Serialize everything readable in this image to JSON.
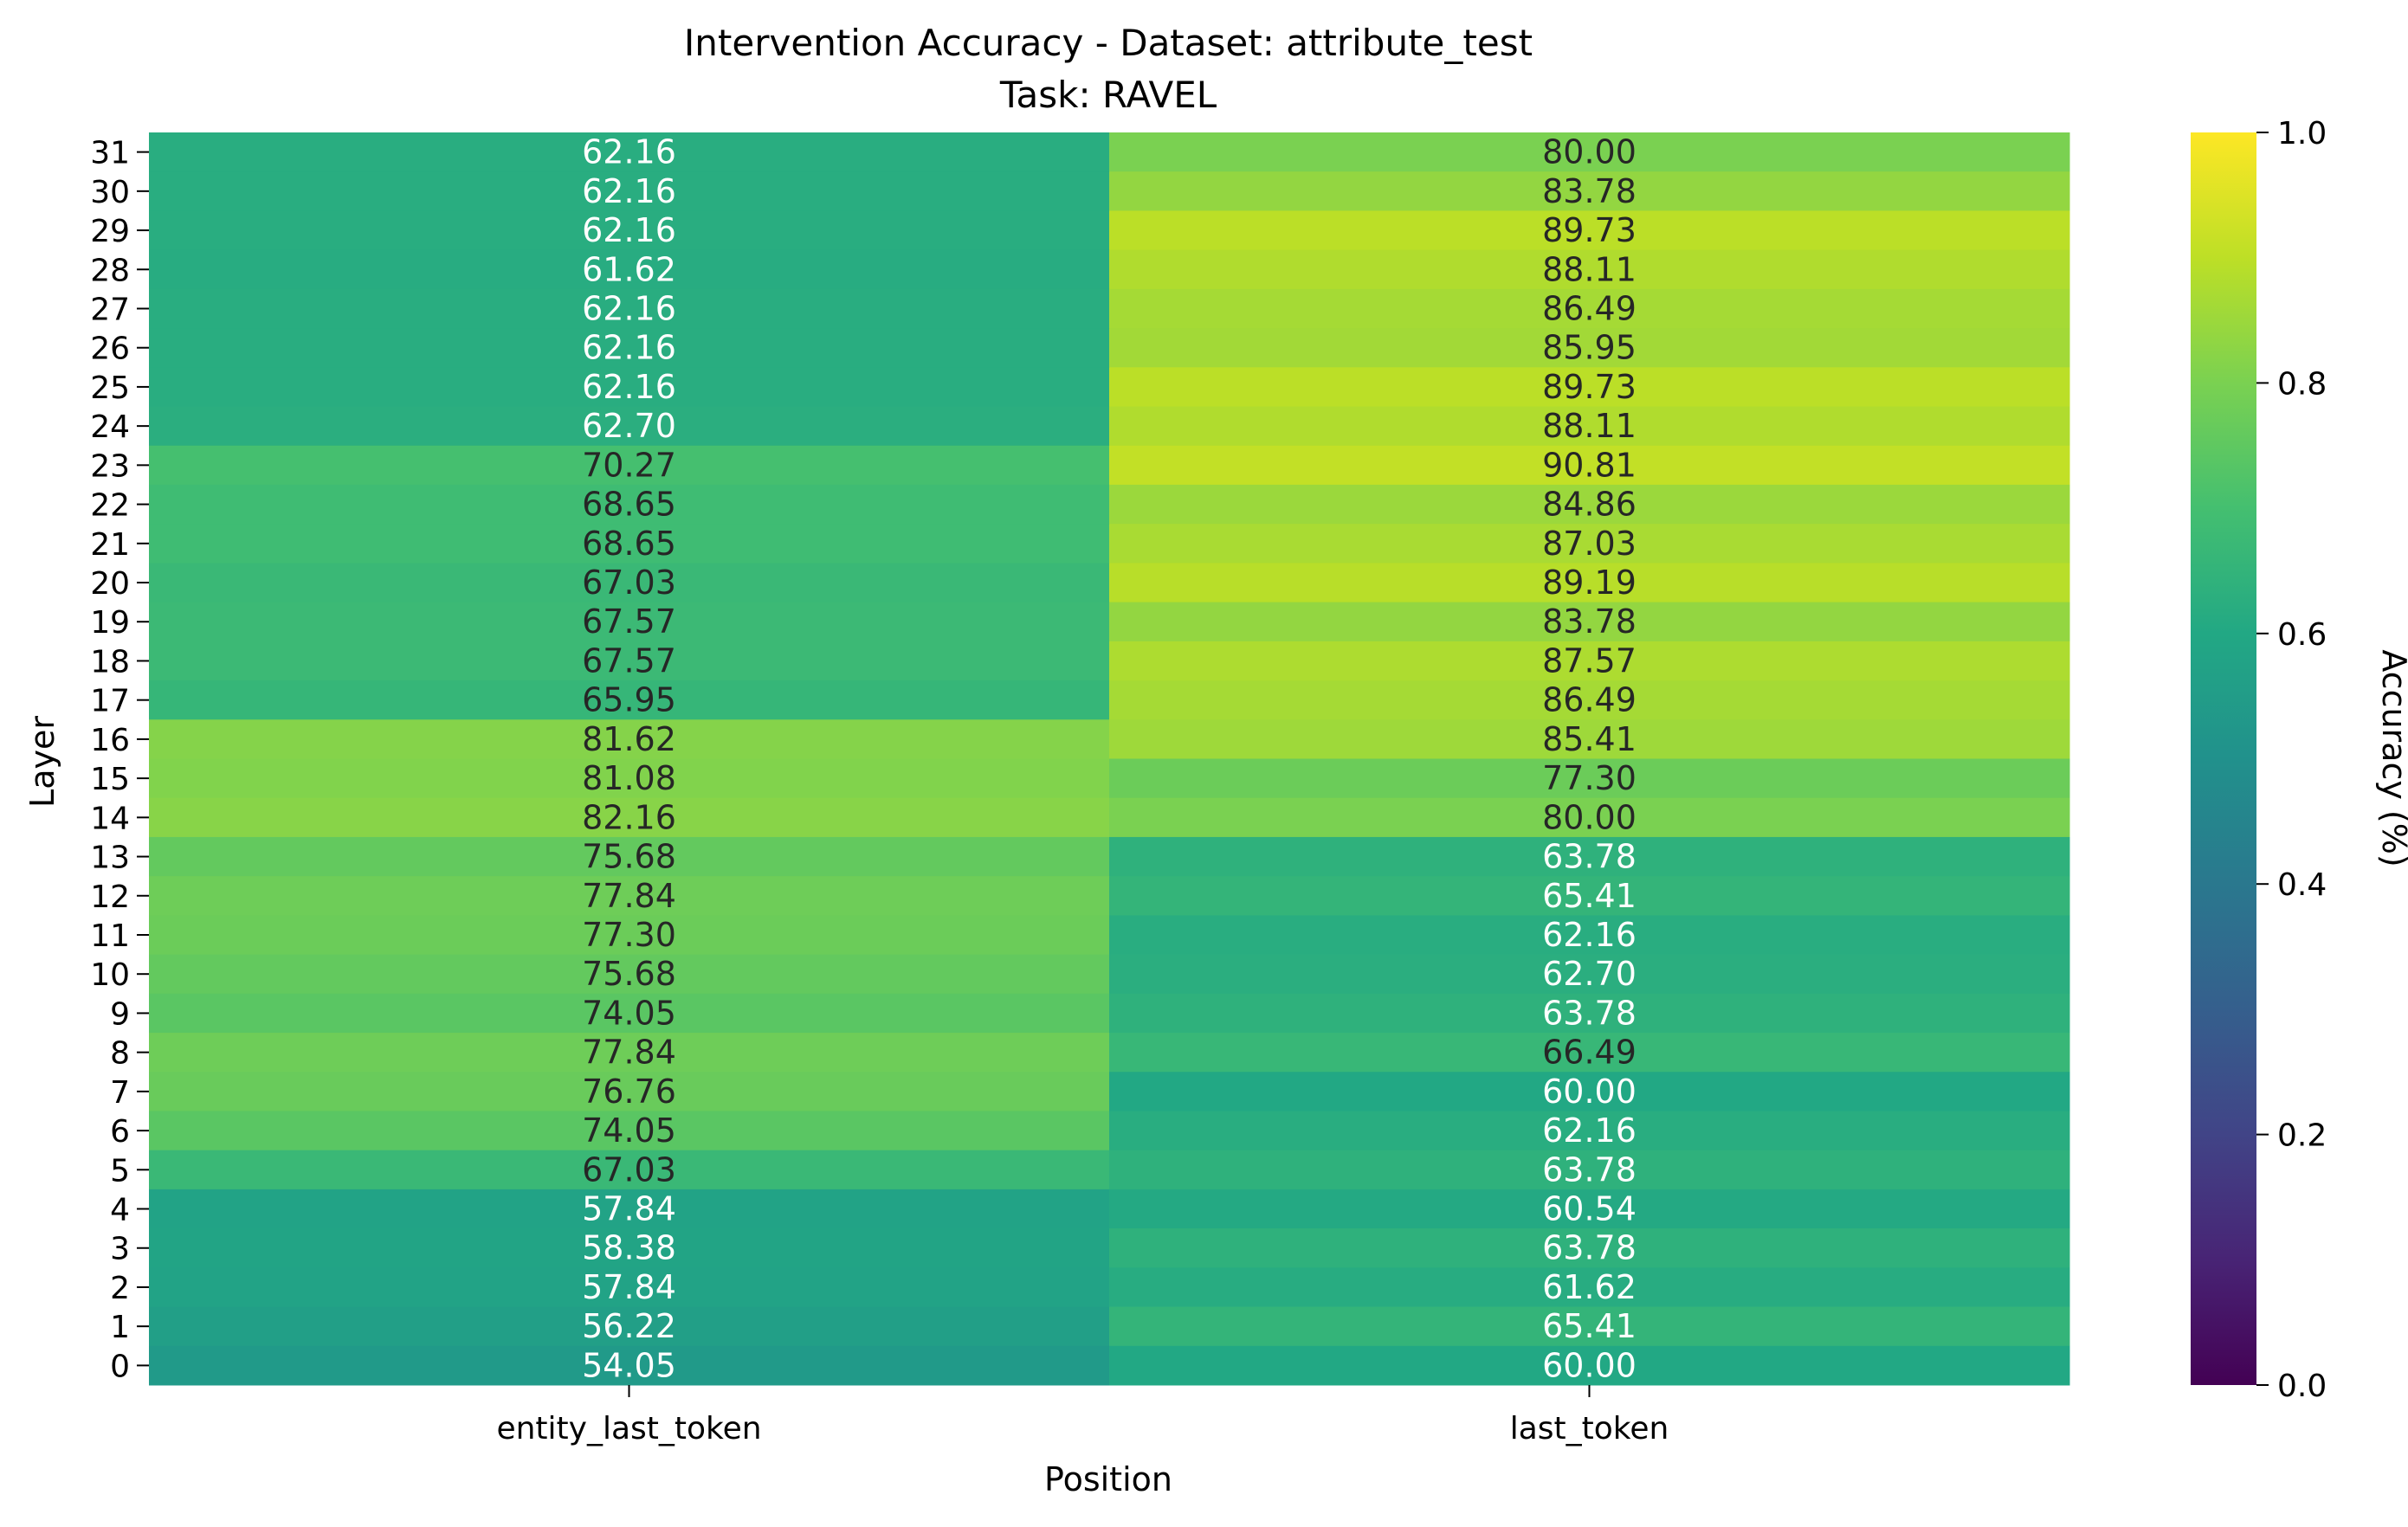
{
  "chart_data": {
    "type": "heatmap",
    "title": "Intervention Accuracy - Dataset: attribute_test",
    "subtitle": "Task: RAVEL",
    "xlabel": "Position",
    "ylabel": "Layer",
    "colorbar_label": "Accuracy (%)",
    "colormap": "viridis",
    "vmin": 0.0,
    "vmax": 1.0,
    "colorbar_ticks": [
      "0.0",
      "0.2",
      "0.4",
      "0.6",
      "0.8",
      "1.0"
    ],
    "columns": [
      "entity_last_token",
      "last_token"
    ],
    "rows": [
      31,
      30,
      29,
      28,
      27,
      26,
      25,
      24,
      23,
      22,
      21,
      20,
      19,
      18,
      17,
      16,
      15,
      14,
      13,
      12,
      11,
      10,
      9,
      8,
      7,
      6,
      5,
      4,
      3,
      2,
      1,
      0
    ],
    "values": [
      [
        62.16,
        80.0
      ],
      [
        62.16,
        83.78
      ],
      [
        62.16,
        89.73
      ],
      [
        61.62,
        88.11
      ],
      [
        62.16,
        86.49
      ],
      [
        62.16,
        85.95
      ],
      [
        62.16,
        89.73
      ],
      [
        62.7,
        88.11
      ],
      [
        70.27,
        90.81
      ],
      [
        68.65,
        84.86
      ],
      [
        68.65,
        87.03
      ],
      [
        67.03,
        89.19
      ],
      [
        67.57,
        83.78
      ],
      [
        67.57,
        87.57
      ],
      [
        65.95,
        86.49
      ],
      [
        81.62,
        85.41
      ],
      [
        81.08,
        77.3
      ],
      [
        82.16,
        80.0
      ],
      [
        75.68,
        63.78
      ],
      [
        77.84,
        65.41
      ],
      [
        77.3,
        62.16
      ],
      [
        75.68,
        62.7
      ],
      [
        74.05,
        63.78
      ],
      [
        77.84,
        66.49
      ],
      [
        76.76,
        60.0
      ],
      [
        74.05,
        62.16
      ],
      [
        67.03,
        63.78
      ],
      [
        57.84,
        60.54
      ],
      [
        58.38,
        63.78
      ],
      [
        57.84,
        61.62
      ],
      [
        56.22,
        65.41
      ],
      [
        54.05,
        60.0
      ]
    ]
  }
}
